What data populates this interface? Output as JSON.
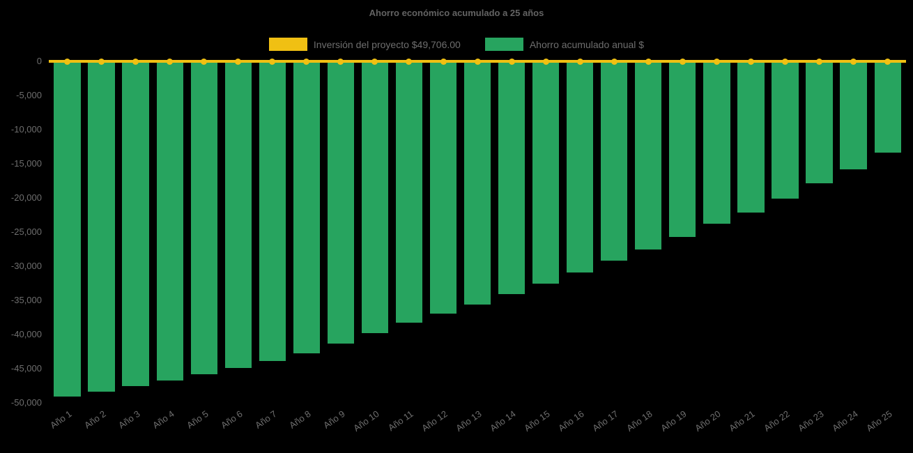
{
  "chart_data": {
    "type": "bar",
    "title": "Ahorro económico acumulado a 25 años",
    "categories": [
      "Año 1",
      "Año 2",
      "Año 3",
      "Año 4",
      "Año 5",
      "Año 6",
      "Año 7",
      "Año 8",
      "Año 9",
      "Año 10",
      "Año 11",
      "Año 12",
      "Año 13",
      "Año 14",
      "Año 15",
      "Año 16",
      "Año 17",
      "Año 18",
      "Año 19",
      "Año 20",
      "Año 21",
      "Año 22",
      "Año 23",
      "Año 24",
      "Año 25"
    ],
    "series": [
      {
        "name": "Inversión del proyecto $49,706.00",
        "type": "line",
        "color": "#f0c013",
        "values": [
          0,
          0,
          0,
          0,
          0,
          0,
          0,
          0,
          0,
          0,
          0,
          0,
          0,
          0,
          0,
          0,
          0,
          0,
          0,
          0,
          0,
          0,
          0,
          0,
          0
        ]
      },
      {
        "name": "Ahorro acumulado anual $",
        "type": "bar",
        "color": "#27a45f",
        "values": [
          -49100,
          -48350,
          -47550,
          -46750,
          -45850,
          -44900,
          -43900,
          -42800,
          -41300,
          -39800,
          -38300,
          -36900,
          -35600,
          -34100,
          -32500,
          -30900,
          -29200,
          -27500,
          -25700,
          -23800,
          -22100,
          -20100,
          -17900,
          -15800,
          -13400
        ]
      }
    ],
    "ylim": [
      -50000,
      0
    ],
    "y_ticks": [
      {
        "value": 0,
        "label": "0"
      },
      {
        "value": -5000,
        "label": "-5,000"
      },
      {
        "value": -10000,
        "label": "-10,000"
      },
      {
        "value": -15000,
        "label": "-15,000"
      },
      {
        "value": -20000,
        "label": "-20,000"
      },
      {
        "value": -25000,
        "label": "-25,000"
      },
      {
        "value": -30000,
        "label": "-30,000"
      },
      {
        "value": -35000,
        "label": "-35,000"
      },
      {
        "value": -40000,
        "label": "-40,000"
      },
      {
        "value": -45000,
        "label": "-45,000"
      },
      {
        "value": -50000,
        "label": "-50,000"
      }
    ],
    "grid": false,
    "legend_position": "top",
    "x_tick_rotation": -35,
    "colors": {
      "background": "#000000",
      "text": "#6e6e6e",
      "title": "#636363"
    }
  }
}
